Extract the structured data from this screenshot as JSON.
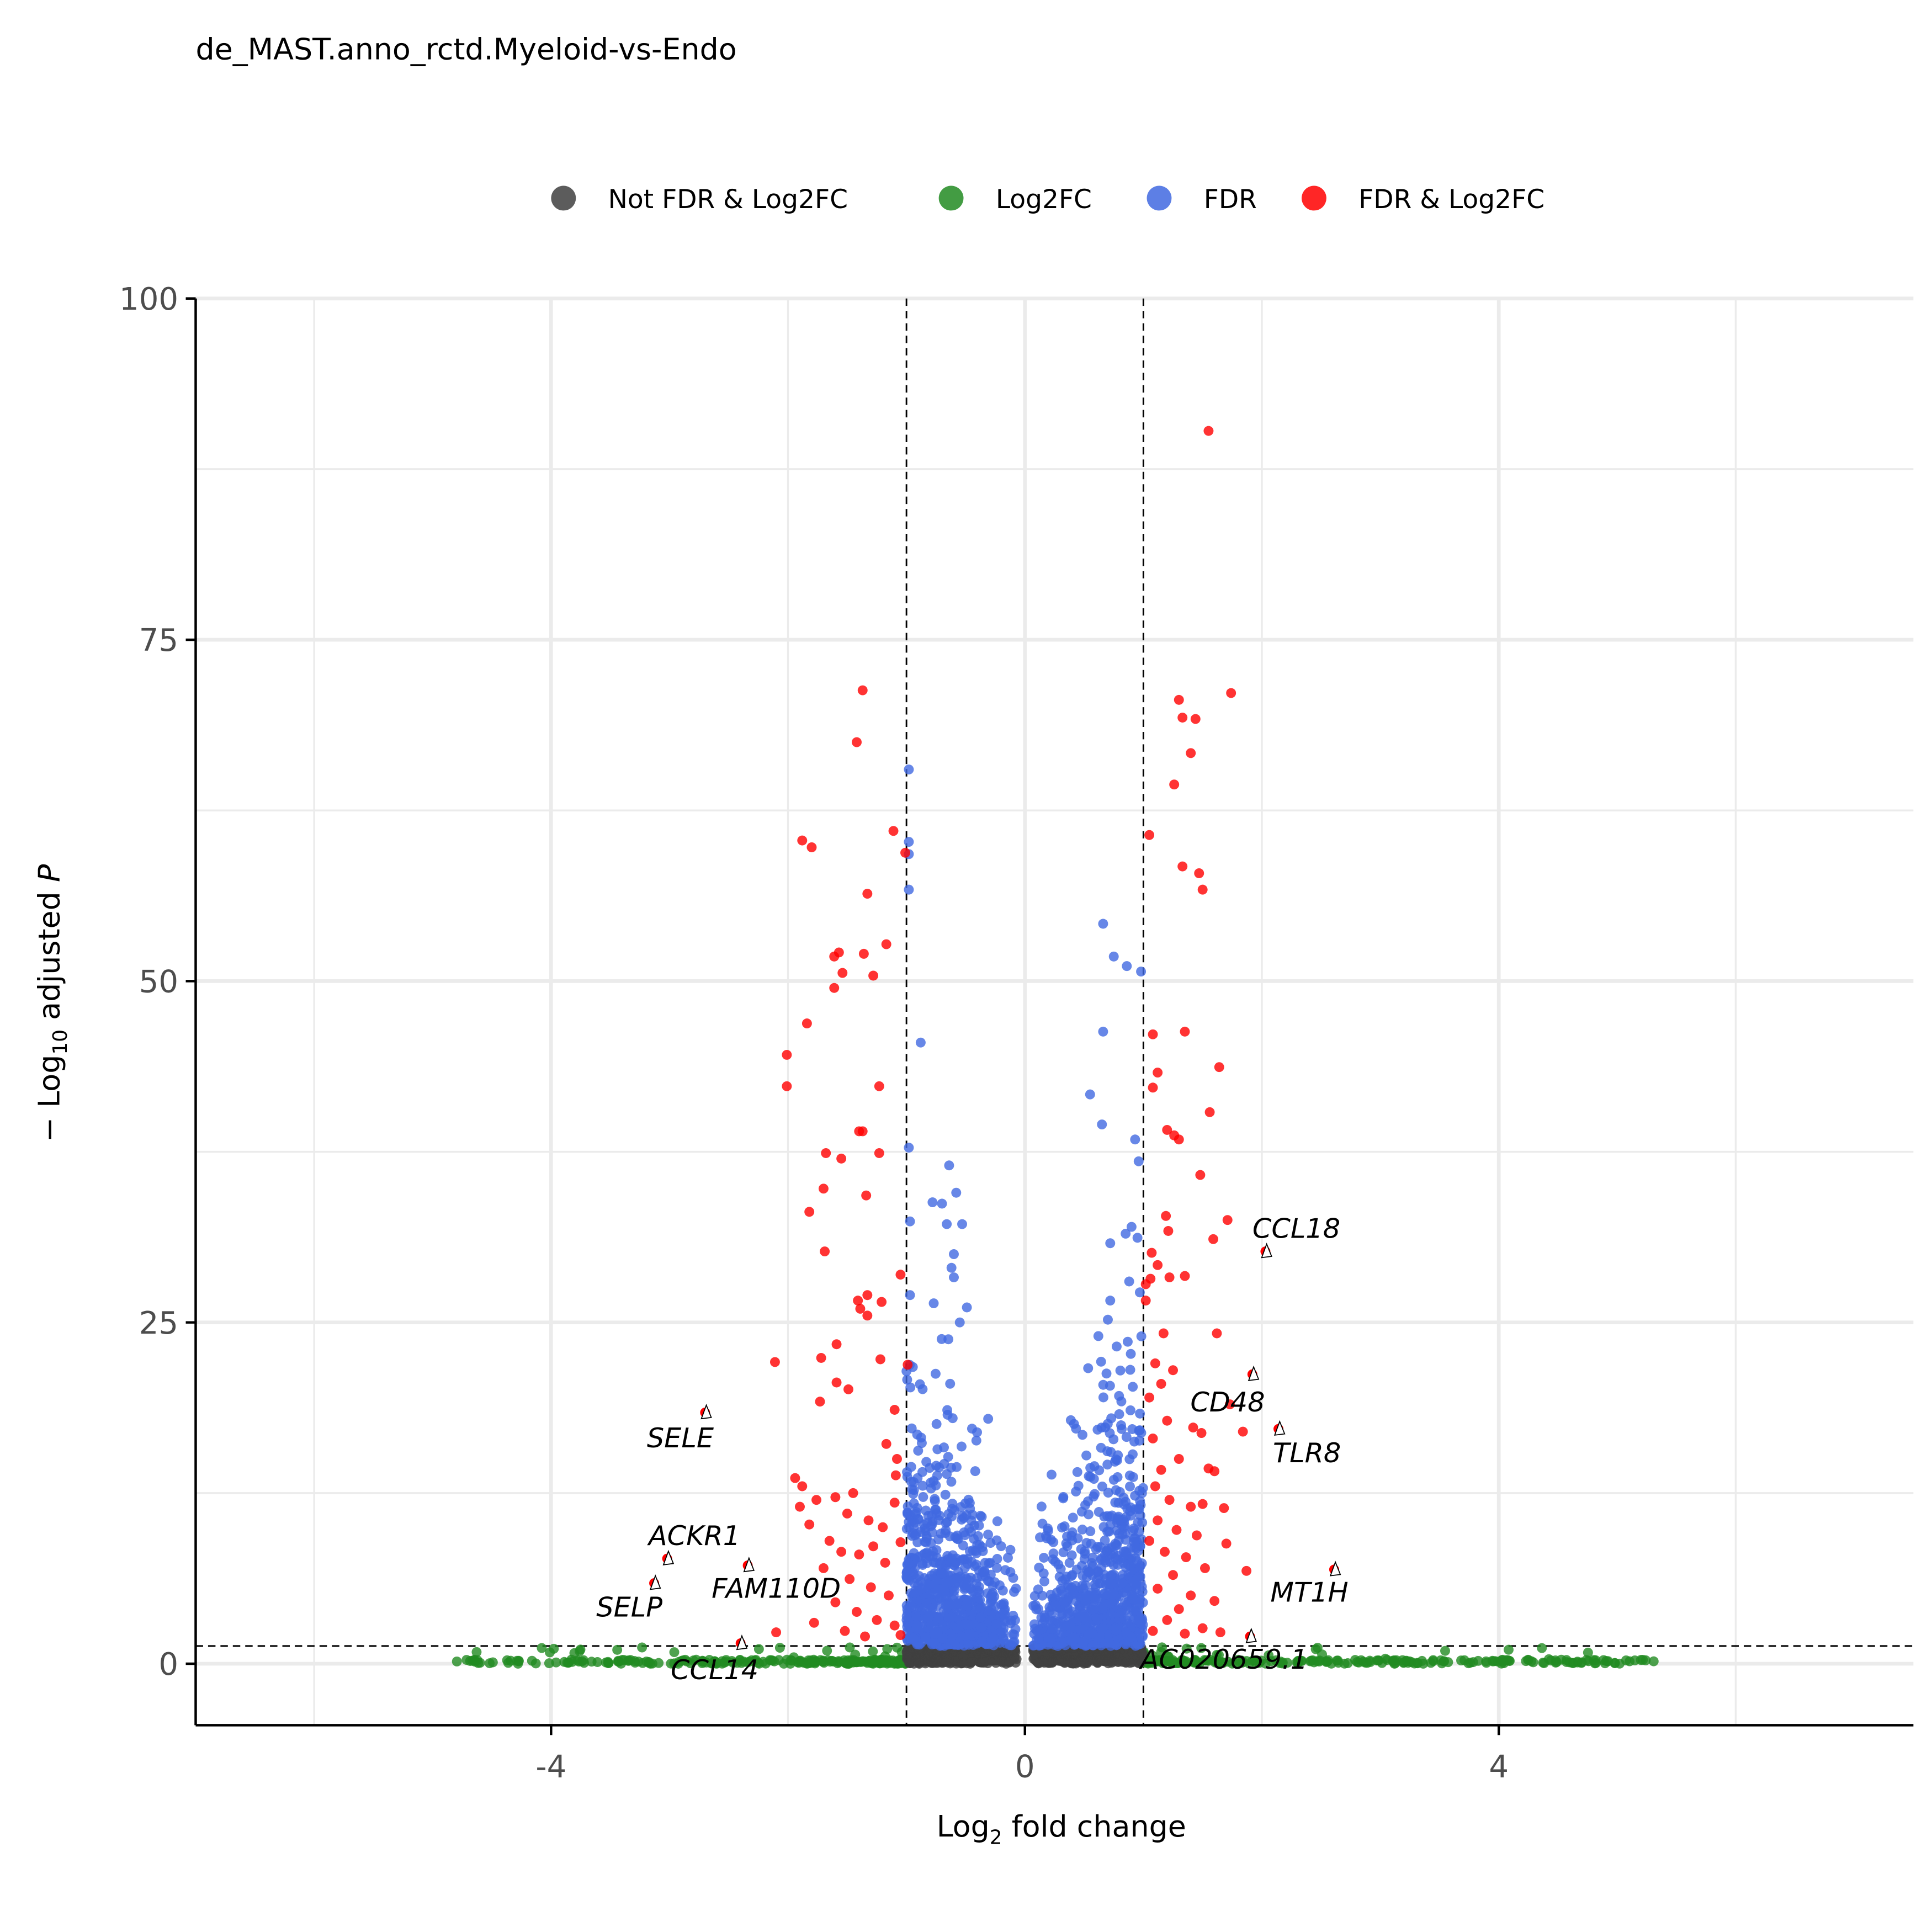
{
  "chart_data": {
    "type": "scatter",
    "title": "de_MAST.anno_rctd.Myeloid-vs-Endo",
    "xlabel": "Log2 fold change",
    "xlabel_parts": {
      "pre": "Log",
      "sub": "2",
      "post": " fold change"
    },
    "ylabel": "-Log10 adjusted P",
    "ylabel_parts": {
      "pre": "− Log",
      "sub": "10",
      "post": " adjusted ",
      "italic": "P"
    },
    "xlim": [
      -7,
      7.5
    ],
    "ylim": [
      -4.5,
      100
    ],
    "x_ticks": [
      -4,
      0,
      4
    ],
    "x_tick_labels": [
      "-4",
      "0",
      "4"
    ],
    "y_ticks": [
      0,
      25,
      50,
      75,
      100
    ],
    "y_tick_labels": [
      "0",
      "25",
      "50",
      "75",
      "100"
    ],
    "grid": true,
    "thresholds": {
      "log2fc": [
        -1,
        1
      ],
      "neg_log10_padj": 1.3
    },
    "legend": {
      "placement": "top",
      "entries": [
        {
          "key": "ns",
          "label": "Not FDR & Log2FC",
          "color": "#404040"
        },
        {
          "key": "fc",
          "label": "Log2FC",
          "color": "#228B22"
        },
        {
          "key": "fdr",
          "label": "FDR",
          "color": "#4169E1"
        },
        {
          "key": "both",
          "label": "FDR & Log2FC",
          "color": "#FF0000"
        }
      ]
    },
    "labeled_genes": [
      {
        "gene": "SELE",
        "x": -2.7,
        "y": 18.4
      },
      {
        "gene": "ACKR1",
        "x": -3.02,
        "y": 7.7
      },
      {
        "gene": "SELP",
        "x": -3.13,
        "y": 5.9
      },
      {
        "gene": "FAM110D",
        "x": -2.34,
        "y": 7.2
      },
      {
        "gene": "CCL14",
        "x": -2.4,
        "y": 1.5
      },
      {
        "gene": "CCL18",
        "x": 2.03,
        "y": 30.2
      },
      {
        "gene": "CD48",
        "x": 1.92,
        "y": 21.2
      },
      {
        "gene": "TLR8",
        "x": 2.14,
        "y": 17.2
      },
      {
        "gene": "MT1H",
        "x": 2.61,
        "y": 6.9
      },
      {
        "gene": "AC020659.1",
        "x": 1.9,
        "y": 2.0
      }
    ],
    "significant_points": [
      [
        -1.37,
        71.3
      ],
      [
        -1.42,
        67.5
      ],
      [
        -1.88,
        60.3
      ],
      [
        -1.8,
        59.8
      ],
      [
        -1.11,
        61.0
      ],
      [
        -1.01,
        59.4
      ],
      [
        -1.33,
        56.4
      ],
      [
        -1.17,
        52.7
      ],
      [
        -1.61,
        51.8
      ],
      [
        -1.57,
        52.1
      ],
      [
        -1.36,
        52.0
      ],
      [
        -1.61,
        49.5
      ],
      [
        -1.54,
        50.6
      ],
      [
        -1.28,
        50.4
      ],
      [
        -1.84,
        46.9
      ],
      [
        -2.01,
        44.6
      ],
      [
        -2.01,
        42.3
      ],
      [
        -1.23,
        42.3
      ],
      [
        -1.4,
        39.0
      ],
      [
        -1.37,
        39.0
      ],
      [
        -1.68,
        37.4
      ],
      [
        -1.55,
        37.0
      ],
      [
        -1.23,
        37.4
      ],
      [
        -1.7,
        34.8
      ],
      [
        -1.34,
        34.3
      ],
      [
        -1.82,
        33.1
      ],
      [
        -1.69,
        30.2
      ],
      [
        -1.05,
        28.5
      ],
      [
        -1.41,
        26.6
      ],
      [
        -1.33,
        27.0
      ],
      [
        -1.21,
        26.5
      ],
      [
        -1.39,
        26.0
      ],
      [
        -1.33,
        25.5
      ],
      [
        -2.11,
        22.1
      ],
      [
        -1.59,
        23.4
      ],
      [
        -1.72,
        22.4
      ],
      [
        -1.22,
        22.3
      ],
      [
        -0.99,
        21.9
      ],
      [
        -1.59,
        20.6
      ],
      [
        -1.49,
        20.1
      ],
      [
        -1.73,
        19.2
      ],
      [
        -1.1,
        18.6
      ],
      [
        -1.17,
        16.1
      ],
      [
        -1.08,
        15.0
      ],
      [
        -1.09,
        13.8
      ],
      [
        -1.94,
        13.6
      ],
      [
        -1.88,
        13.0
      ],
      [
        -1.76,
        12.0
      ],
      [
        -1.9,
        11.5
      ],
      [
        -1.6,
        12.2
      ],
      [
        -1.45,
        12.5
      ],
      [
        -1.5,
        11.0
      ],
      [
        -1.32,
        10.5
      ],
      [
        -1.2,
        10.0
      ],
      [
        -1.1,
        11.8
      ],
      [
        -1.82,
        10.2
      ],
      [
        -1.65,
        9.0
      ],
      [
        -1.55,
        8.2
      ],
      [
        -1.4,
        8.0
      ],
      [
        -1.28,
        8.6
      ],
      [
        -1.18,
        7.4
      ],
      [
        -1.05,
        8.9
      ],
      [
        -1.7,
        7.0
      ],
      [
        -1.48,
        6.2
      ],
      [
        -1.3,
        5.6
      ],
      [
        -1.15,
        5.0
      ],
      [
        -1.6,
        4.5
      ],
      [
        -1.42,
        3.8
      ],
      [
        -1.25,
        3.2
      ],
      [
        -1.1,
        2.8
      ],
      [
        -1.78,
        3.0
      ],
      [
        -1.52,
        2.4
      ],
      [
        -2.1,
        2.3
      ],
      [
        -1.35,
        2.0
      ],
      [
        -1.05,
        2.1
      ],
      [
        1.55,
        90.3
      ],
      [
        1.74,
        71.1
      ],
      [
        1.3,
        70.6
      ],
      [
        1.33,
        69.3
      ],
      [
        1.44,
        69.2
      ],
      [
        1.4,
        66.7
      ],
      [
        1.26,
        64.4
      ],
      [
        1.05,
        60.7
      ],
      [
        1.33,
        58.4
      ],
      [
        1.47,
        57.9
      ],
      [
        1.5,
        56.7
      ],
      [
        1.35,
        46.3
      ],
      [
        1.08,
        46.1
      ],
      [
        1.12,
        43.3
      ],
      [
        1.64,
        43.7
      ],
      [
        1.08,
        42.2
      ],
      [
        1.56,
        40.4
      ],
      [
        1.2,
        39.1
      ],
      [
        1.26,
        38.7
      ],
      [
        1.3,
        38.4
      ],
      [
        1.48,
        35.8
      ],
      [
        1.71,
        32.5
      ],
      [
        1.19,
        32.8
      ],
      [
        1.21,
        31.7
      ],
      [
        1.59,
        31.1
      ],
      [
        1.07,
        30.1
      ],
      [
        1.12,
        29.2
      ],
      [
        1.06,
        28.2
      ],
      [
        1.35,
        28.4
      ],
      [
        1.22,
        28.3
      ],
      [
        1.02,
        27.8
      ],
      [
        1.02,
        26.6
      ],
      [
        1.17,
        24.2
      ],
      [
        1.62,
        24.2
      ],
      [
        1.73,
        19.0
      ],
      [
        1.84,
        17.0
      ],
      [
        1.49,
        16.9
      ],
      [
        1.42,
        17.3
      ],
      [
        1.1,
        22.0
      ],
      [
        1.15,
        20.5
      ],
      [
        1.25,
        21.5
      ],
      [
        1.05,
        19.5
      ],
      [
        1.2,
        17.8
      ],
      [
        1.08,
        16.5
      ],
      [
        1.3,
        15.0
      ],
      [
        1.15,
        14.2
      ],
      [
        1.6,
        14.1
      ],
      [
        1.55,
        14.3
      ],
      [
        1.1,
        13.0
      ],
      [
        1.22,
        12.0
      ],
      [
        1.4,
        11.5
      ],
      [
        1.5,
        11.7
      ],
      [
        1.68,
        11.4
      ],
      [
        1.12,
        10.5
      ],
      [
        1.28,
        9.8
      ],
      [
        1.45,
        9.4
      ],
      [
        1.05,
        9.0
      ],
      [
        1.18,
        8.2
      ],
      [
        1.36,
        7.8
      ],
      [
        1.52,
        7.0
      ],
      [
        1.87,
        6.8
      ],
      [
        1.7,
        8.8
      ],
      [
        1.25,
        6.5
      ],
      [
        1.12,
        5.5
      ],
      [
        1.4,
        5.0
      ],
      [
        1.6,
        4.6
      ],
      [
        1.3,
        4.0
      ],
      [
        1.2,
        3.2
      ],
      [
        1.5,
        2.6
      ],
      [
        1.08,
        2.4
      ],
      [
        1.65,
        2.3
      ],
      [
        1.35,
        2.2
      ]
    ],
    "fdr_outliers": [
      [
        -0.98,
        65.5
      ],
      [
        -0.98,
        60.2
      ],
      [
        -0.98,
        59.3
      ],
      [
        -0.98,
        56.7
      ],
      [
        -0.88,
        45.5
      ],
      [
        -0.98,
        37.8
      ],
      [
        0.66,
        54.2
      ],
      [
        0.75,
        51.8
      ],
      [
        0.86,
        51.1
      ],
      [
        0.98,
        50.7
      ],
      [
        0.66,
        46.3
      ],
      [
        0.55,
        41.7
      ],
      [
        0.65,
        39.5
      ],
      [
        0.93,
        38.4
      ],
      [
        0.96,
        36.8
      ],
      [
        -0.64,
        36.5
      ],
      [
        -0.58,
        34.5
      ],
      [
        -0.7,
        33.7
      ],
      [
        -0.78,
        33.8
      ],
      [
        -0.66,
        32.2
      ],
      [
        -0.53,
        32.2
      ],
      [
        -0.77,
        26.4
      ],
      [
        -0.49,
        26.1
      ],
      [
        0.9,
        32.0
      ],
      [
        0.95,
        31.2
      ],
      [
        0.85,
        31.5
      ],
      [
        0.72,
        30.8
      ],
      [
        0.88,
        28.0
      ],
      [
        0.97,
        27.2
      ],
      [
        0.72,
        26.6
      ],
      [
        0.7,
        25.2
      ],
      [
        0.62,
        24.0
      ],
      [
        -0.6,
        30.0
      ],
      [
        -0.62,
        29.0
      ],
      [
        -0.6,
        28.3
      ],
      [
        -0.55,
        25.0
      ],
      [
        -0.97,
        32.4
      ],
      [
        -0.97,
        27.0
      ]
    ],
    "background_cloud": {
      "fdr_points": 1600,
      "ns_points": 700,
      "fc_points": 520,
      "fc_x_range": [
        -4.9,
        5.4
      ]
    }
  }
}
